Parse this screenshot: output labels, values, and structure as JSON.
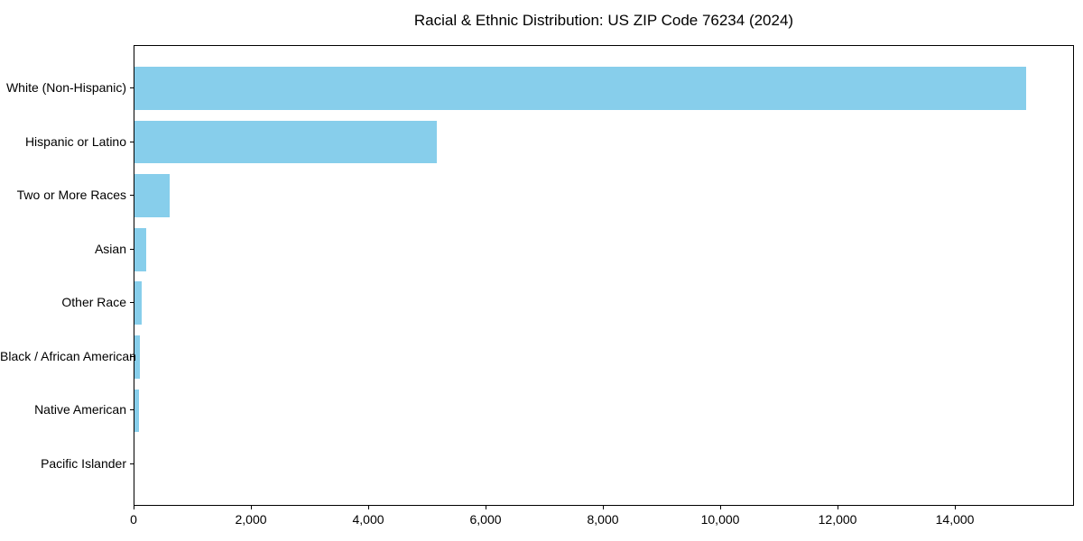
{
  "title": "Racial & Ethnic Distribution: US ZIP Code 76234 (2024)",
  "chart_data": {
    "type": "bar",
    "orientation": "horizontal",
    "title": "Racial & Ethnic Distribution: US ZIP Code 76234 (2024)",
    "xlabel": "",
    "ylabel": "",
    "categories": [
      "White (Non-Hispanic)",
      "Hispanic or Latino",
      "Two or More Races",
      "Asian",
      "Other Race",
      "Black / African American",
      "Native American",
      "Pacific Islander"
    ],
    "values": [
      15200,
      5150,
      600,
      195,
      125,
      90,
      70,
      0
    ],
    "xlim": [
      0,
      16030
    ],
    "x_ticks": [
      0,
      2000,
      4000,
      6000,
      8000,
      10000,
      12000,
      14000
    ],
    "x_tick_labels": [
      "0",
      "2,000",
      "4,000",
      "6,000",
      "8,000",
      "10,000",
      "12,000",
      "14,000"
    ],
    "grid": false,
    "legend": null,
    "bar_color": "#87CEEB",
    "axis_color": "#000000",
    "background_color": "#ffffff"
  }
}
